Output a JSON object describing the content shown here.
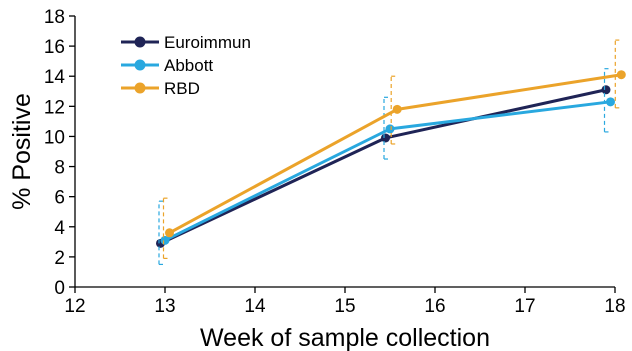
{
  "chart_data": {
    "type": "line",
    "title": "",
    "xlabel": "Week of sample collection",
    "ylabel": "% Positive",
    "xlim": [
      12,
      18
    ],
    "ylim": [
      0,
      18
    ],
    "xticks": [
      "12",
      "13",
      "14",
      "15",
      "16",
      "17",
      "18"
    ],
    "yticks": [
      "0",
      "2",
      "4",
      "6",
      "8",
      "10",
      "12",
      "14",
      "16",
      "18"
    ],
    "grid": false,
    "legend_position": "top-left",
    "series": [
      {
        "name": "Euroimmun",
        "color": "#1f2456",
        "x": [
          12.95,
          15.45,
          17.9
        ],
        "y": [
          2.9,
          9.9,
          13.1
        ],
        "error_low": [],
        "error_high": []
      },
      {
        "name": "Abbott",
        "color": "#29a8df",
        "x": [
          13.0,
          15.5,
          17.95
        ],
        "y": [
          3.1,
          10.5,
          12.3
        ],
        "error_low": [
          1.5,
          8.5,
          10.3
        ],
        "error_high": [
          5.7,
          12.6,
          14.5
        ]
      },
      {
        "name": "RBD",
        "color": "#eba32a",
        "x": [
          13.05,
          15.58,
          18.07
        ],
        "y": [
          3.6,
          11.8,
          14.1
        ],
        "error_low": [
          1.9,
          9.5,
          11.9
        ],
        "error_high": [
          5.9,
          14.0,
          16.4
        ]
      }
    ]
  }
}
